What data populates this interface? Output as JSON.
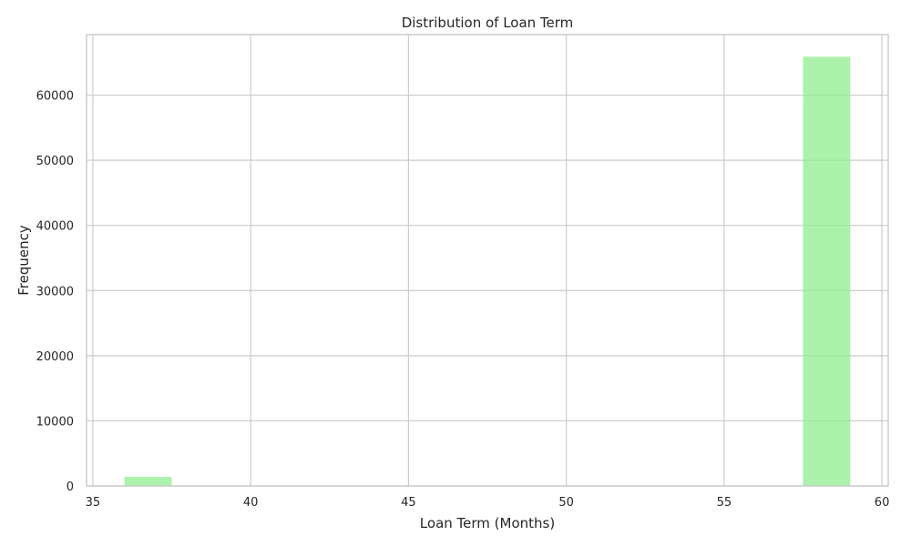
{
  "chart_data": {
    "type": "bar",
    "title": "Distribution of Loan Term",
    "xlabel": "Loan Term (Months)",
    "ylabel": "Frequency",
    "xlim": [
      34.8,
      60.2
    ],
    "ylim": [
      0,
      69300
    ],
    "xticks": [
      35,
      40,
      45,
      50,
      55,
      60
    ],
    "yticks": [
      0,
      10000,
      20000,
      30000,
      40000,
      50000,
      60000
    ],
    "bins": [
      {
        "start": 36.0,
        "end": 37.5,
        "value": 1400
      },
      {
        "start": 57.5,
        "end": 59.0,
        "value": 65900
      }
    ],
    "grid": true,
    "bar_color": "#90ee90",
    "grid_color": "#cccccc",
    "spine_color": "#cccccc"
  }
}
